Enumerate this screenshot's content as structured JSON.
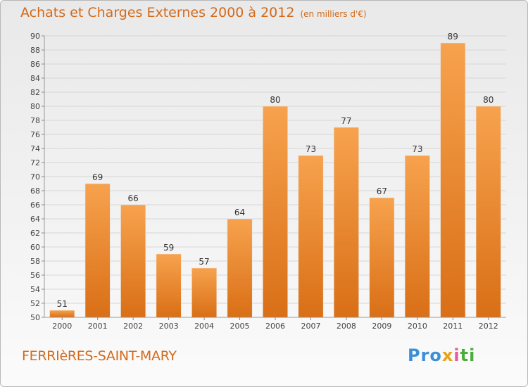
{
  "header": {
    "title": "Achats et Charges Externes 2000 à 2012",
    "subtitle": "(en milliers d'€)"
  },
  "footer": {
    "town": "FERRIèRES-SAINT-MARY",
    "logo_parts": [
      "Pro",
      "x",
      "i",
      "ti"
    ]
  },
  "colors": {
    "bar_top": "#f7a24e",
    "bar_bottom": "#d96f16",
    "title": "#d36a1a",
    "grid": "#d6d6d6",
    "axis_text": "#444444"
  },
  "chart_data": {
    "type": "bar",
    "title": "Achats et Charges Externes 2000 à 2012",
    "subtitle": "(en milliers d'€)",
    "categories": [
      "2000",
      "2001",
      "2002",
      "2003",
      "2004",
      "2005",
      "2006",
      "2007",
      "2008",
      "2009",
      "2010",
      "2011",
      "2012"
    ],
    "values": [
      51,
      69,
      66,
      59,
      57,
      64,
      80,
      73,
      77,
      67,
      73,
      89,
      80
    ],
    "data_labels": [
      "51",
      "69",
      "66",
      "59",
      "57",
      "64",
      "80",
      "73",
      "77",
      "67",
      "73",
      "89",
      "80"
    ],
    "ylim": [
      50,
      90
    ],
    "yticks": [
      50,
      52,
      54,
      56,
      58,
      60,
      62,
      64,
      66,
      68,
      70,
      72,
      74,
      76,
      78,
      80,
      82,
      84,
      86,
      88,
      90
    ],
    "xlabel": "",
    "ylabel": "",
    "grid": true,
    "legend": "none"
  }
}
